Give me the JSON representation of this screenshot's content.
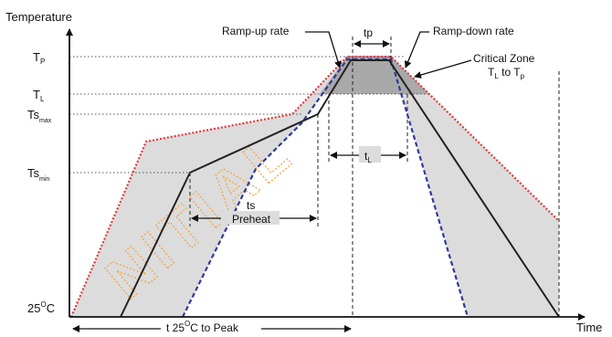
{
  "axes": {
    "y_title": "Temperature",
    "x_title": "Time"
  },
  "y_levels": {
    "tp": {
      "main": "T",
      "sub": "P"
    },
    "tl": {
      "main": "T",
      "sub": "L"
    },
    "tsmax": {
      "main": "Ts",
      "sub": "max"
    },
    "tsmin": {
      "main": "Ts",
      "sub": "min"
    },
    "t25": {
      "main": "25",
      "sup": "O",
      "unit": "C"
    }
  },
  "annotations": {
    "tp_width": "tp",
    "ramp_up": "Ramp-up rate",
    "ramp_down": "Ramp-down rate",
    "critical_zone_line1": "Critical Zone",
    "critical_zone_line2_main": "T",
    "critical_zone_line2_sub_l": "L",
    "critical_zone_line2_to": " to T",
    "critical_zone_line2_sub_p": "p",
    "tl_main": "t",
    "tl_sub": "L",
    "ts": "ts",
    "preheat": "Preheat",
    "t25_peak_prefix": "t 25",
    "t25_peak_sup": "O",
    "t25_peak_suffix": "C to Peak"
  },
  "watermark": "NITIAL",
  "colors": {
    "envelope_fill": "#dcdcdc",
    "critical_fill": "#a9a9a9",
    "max_profile": "#e0393e",
    "min_profile": "#2f3a9e",
    "nominal_profile": "#222222",
    "watermark": "#f2a64a"
  }
}
